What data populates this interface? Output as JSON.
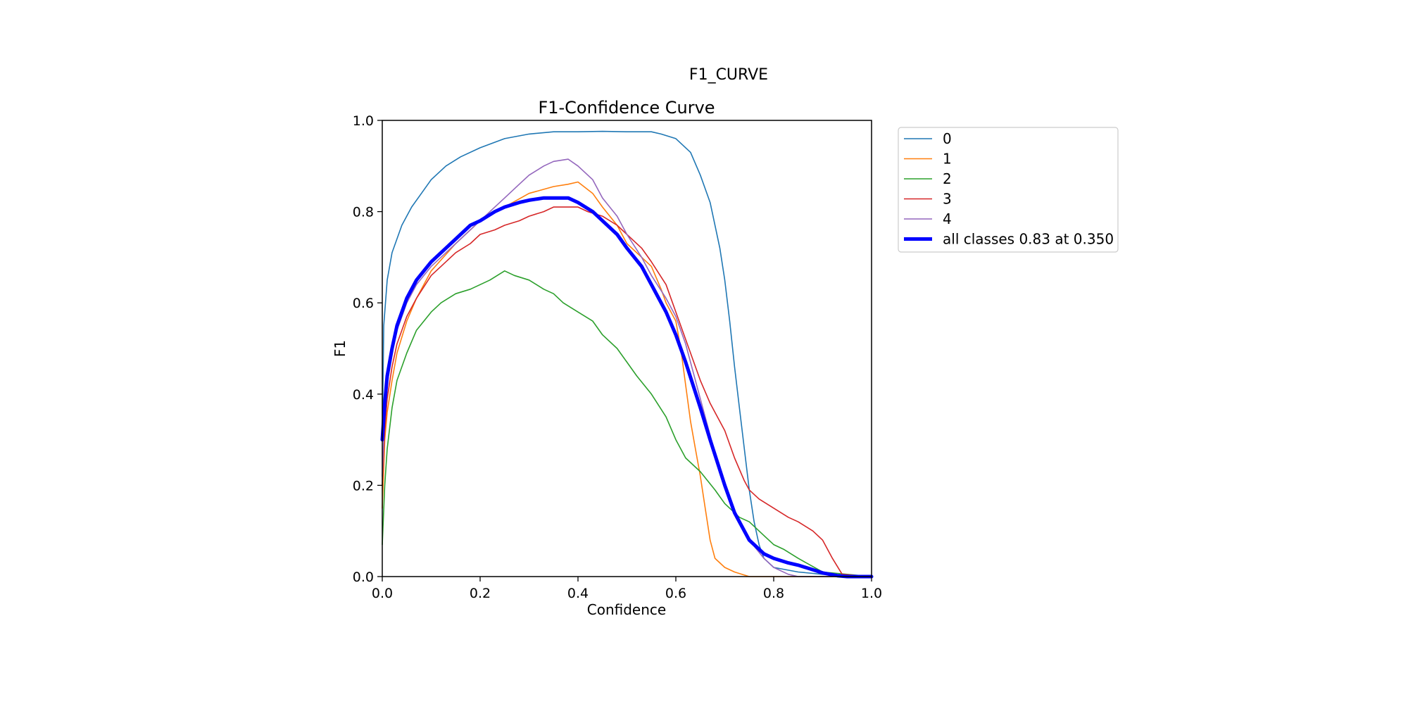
{
  "figure": {
    "suptitle": "F1_CURVE"
  },
  "chart_data": {
    "type": "line",
    "title": "F1-Confidence Curve",
    "xlabel": "Confidence",
    "ylabel": "F1",
    "xlim": [
      0.0,
      1.0
    ],
    "ylim": [
      0.0,
      1.0
    ],
    "xticks": [
      "0.0",
      "0.2",
      "0.4",
      "0.6",
      "0.8",
      "1.0"
    ],
    "yticks": [
      "0.0",
      "0.2",
      "0.4",
      "0.6",
      "0.8",
      "1.0"
    ],
    "grid": false,
    "legend_position": "outside upper right",
    "series": [
      {
        "name": "0",
        "color": "#1f77b4",
        "linewidth": "thin",
        "x": [
          0.0,
          0.003,
          0.01,
          0.02,
          0.04,
          0.06,
          0.08,
          0.1,
          0.13,
          0.16,
          0.2,
          0.25,
          0.3,
          0.35,
          0.4,
          0.45,
          0.5,
          0.55,
          0.57,
          0.6,
          0.63,
          0.65,
          0.67,
          0.69,
          0.7,
          0.71,
          0.72,
          0.73,
          0.74,
          0.75,
          0.76,
          0.77,
          0.78,
          0.8,
          0.85,
          0.9,
          1.0
        ],
        "y": [
          0.3,
          0.55,
          0.65,
          0.71,
          0.77,
          0.81,
          0.84,
          0.87,
          0.9,
          0.92,
          0.94,
          0.96,
          0.97,
          0.975,
          0.975,
          0.976,
          0.975,
          0.975,
          0.97,
          0.96,
          0.93,
          0.88,
          0.82,
          0.72,
          0.65,
          0.56,
          0.46,
          0.37,
          0.28,
          0.19,
          0.12,
          0.07,
          0.04,
          0.02,
          0.01,
          0.005,
          0.0
        ]
      },
      {
        "name": "1",
        "color": "#ff7f0e",
        "linewidth": "thin",
        "x": [
          0.0,
          0.005,
          0.01,
          0.02,
          0.03,
          0.05,
          0.07,
          0.1,
          0.15,
          0.2,
          0.25,
          0.3,
          0.35,
          0.38,
          0.4,
          0.43,
          0.45,
          0.48,
          0.5,
          0.53,
          0.55,
          0.57,
          0.58,
          0.6,
          0.61,
          0.62,
          0.63,
          0.64,
          0.65,
          0.66,
          0.67,
          0.68,
          0.7,
          0.72,
          0.75,
          0.8,
          1.0
        ],
        "y": [
          0.15,
          0.3,
          0.36,
          0.43,
          0.49,
          0.56,
          0.61,
          0.67,
          0.73,
          0.78,
          0.81,
          0.84,
          0.855,
          0.86,
          0.865,
          0.84,
          0.81,
          0.77,
          0.73,
          0.7,
          0.68,
          0.63,
          0.6,
          0.56,
          0.5,
          0.42,
          0.34,
          0.28,
          0.22,
          0.15,
          0.08,
          0.04,
          0.02,
          0.01,
          0.0,
          0.0,
          0.0
        ]
      },
      {
        "name": "2",
        "color": "#2ca02c",
        "linewidth": "thin",
        "x": [
          0.0,
          0.005,
          0.01,
          0.02,
          0.03,
          0.05,
          0.07,
          0.1,
          0.12,
          0.15,
          0.18,
          0.2,
          0.22,
          0.25,
          0.27,
          0.3,
          0.33,
          0.35,
          0.37,
          0.4,
          0.43,
          0.45,
          0.48,
          0.5,
          0.52,
          0.55,
          0.58,
          0.6,
          0.62,
          0.65,
          0.68,
          0.7,
          0.73,
          0.75,
          0.78,
          0.8,
          0.82,
          0.85,
          0.9,
          1.0
        ],
        "y": [
          0.07,
          0.2,
          0.28,
          0.37,
          0.43,
          0.49,
          0.54,
          0.58,
          0.6,
          0.62,
          0.63,
          0.64,
          0.65,
          0.67,
          0.66,
          0.65,
          0.63,
          0.62,
          0.6,
          0.58,
          0.56,
          0.53,
          0.5,
          0.47,
          0.44,
          0.4,
          0.35,
          0.3,
          0.26,
          0.23,
          0.19,
          0.16,
          0.13,
          0.12,
          0.09,
          0.07,
          0.06,
          0.04,
          0.01,
          0.0
        ]
      },
      {
        "name": "3",
        "color": "#d62728",
        "linewidth": "thin",
        "x": [
          0.0,
          0.005,
          0.01,
          0.02,
          0.03,
          0.05,
          0.07,
          0.1,
          0.12,
          0.15,
          0.18,
          0.2,
          0.23,
          0.25,
          0.28,
          0.3,
          0.33,
          0.35,
          0.37,
          0.4,
          0.42,
          0.45,
          0.48,
          0.5,
          0.53,
          0.55,
          0.58,
          0.6,
          0.62,
          0.65,
          0.67,
          0.7,
          0.72,
          0.74,
          0.75,
          0.77,
          0.8,
          0.83,
          0.85,
          0.88,
          0.9,
          0.92,
          0.94,
          1.0
        ],
        "y": [
          0.2,
          0.32,
          0.39,
          0.46,
          0.51,
          0.57,
          0.61,
          0.66,
          0.68,
          0.71,
          0.73,
          0.75,
          0.76,
          0.77,
          0.78,
          0.79,
          0.8,
          0.81,
          0.81,
          0.81,
          0.8,
          0.79,
          0.77,
          0.75,
          0.72,
          0.69,
          0.64,
          0.58,
          0.52,
          0.43,
          0.38,
          0.32,
          0.26,
          0.21,
          0.19,
          0.17,
          0.15,
          0.13,
          0.12,
          0.1,
          0.08,
          0.04,
          0.005,
          0.0
        ]
      },
      {
        "name": "4",
        "color": "#9467bd",
        "linewidth": "thin",
        "x": [
          0.0,
          0.005,
          0.01,
          0.02,
          0.03,
          0.05,
          0.07,
          0.1,
          0.13,
          0.15,
          0.18,
          0.2,
          0.23,
          0.25,
          0.28,
          0.3,
          0.33,
          0.35,
          0.38,
          0.4,
          0.43,
          0.45,
          0.48,
          0.5,
          0.53,
          0.55,
          0.58,
          0.6,
          0.62,
          0.64,
          0.66,
          0.68,
          0.7,
          0.72,
          0.75,
          0.78,
          0.8,
          0.83,
          0.85,
          1.0
        ],
        "y": [
          0.22,
          0.36,
          0.42,
          0.49,
          0.54,
          0.6,
          0.64,
          0.68,
          0.71,
          0.73,
          0.76,
          0.78,
          0.81,
          0.83,
          0.86,
          0.88,
          0.9,
          0.91,
          0.915,
          0.9,
          0.87,
          0.83,
          0.79,
          0.75,
          0.7,
          0.66,
          0.61,
          0.57,
          0.51,
          0.43,
          0.35,
          0.27,
          0.2,
          0.14,
          0.08,
          0.04,
          0.02,
          0.005,
          0.0,
          0.0
        ]
      },
      {
        "name": "all classes 0.83 at 0.350",
        "color": "#0000ff",
        "linewidth": "thick",
        "x": [
          0.0,
          0.005,
          0.01,
          0.02,
          0.03,
          0.05,
          0.07,
          0.1,
          0.13,
          0.15,
          0.18,
          0.2,
          0.23,
          0.25,
          0.28,
          0.3,
          0.33,
          0.35,
          0.38,
          0.4,
          0.43,
          0.45,
          0.48,
          0.5,
          0.53,
          0.55,
          0.58,
          0.6,
          0.62,
          0.65,
          0.67,
          0.7,
          0.72,
          0.75,
          0.78,
          0.8,
          0.83,
          0.85,
          0.88,
          0.9,
          0.93,
          0.95,
          1.0
        ],
        "y": [
          0.3,
          0.38,
          0.44,
          0.5,
          0.55,
          0.61,
          0.65,
          0.69,
          0.72,
          0.74,
          0.77,
          0.78,
          0.8,
          0.81,
          0.82,
          0.825,
          0.83,
          0.83,
          0.83,
          0.82,
          0.8,
          0.78,
          0.75,
          0.72,
          0.68,
          0.64,
          0.58,
          0.53,
          0.47,
          0.37,
          0.3,
          0.2,
          0.14,
          0.08,
          0.05,
          0.04,
          0.03,
          0.025,
          0.015,
          0.008,
          0.002,
          0.0,
          0.0
        ]
      }
    ]
  }
}
